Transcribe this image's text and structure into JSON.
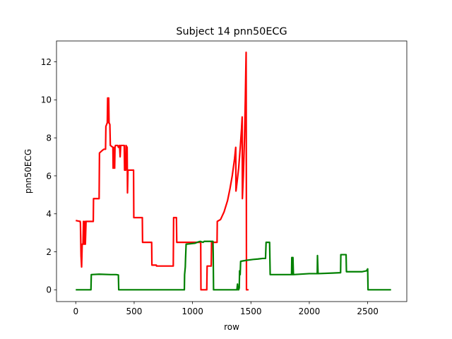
{
  "chart_data": {
    "type": "line",
    "title": "Subject 14 pnn50ECG",
    "xlabel": "row",
    "ylabel": "pnn50ECG",
    "xlim": [
      -165,
      2835
    ],
    "ylim": [
      -0.62,
      13.1
    ],
    "xticks": [
      0,
      500,
      1000,
      1500,
      2000,
      2500
    ],
    "yticks": [
      0,
      2,
      4,
      6,
      8,
      10,
      12
    ],
    "grid": false,
    "series": [
      {
        "color": "#ff0000",
        "points": [
          [
            0,
            3.65
          ],
          [
            20,
            3.62
          ],
          [
            38,
            3.6
          ],
          [
            40,
            3.5
          ],
          [
            45,
            1.8
          ],
          [
            50,
            1.2
          ],
          [
            55,
            2.4
          ],
          [
            62,
            2.4
          ],
          [
            66,
            3.6
          ],
          [
            72,
            2.4
          ],
          [
            78,
            3.6
          ],
          [
            82,
            2.4
          ],
          [
            88,
            3.6
          ],
          [
            150,
            3.6
          ],
          [
            152,
            4.8
          ],
          [
            200,
            4.8
          ],
          [
            203,
            7.2
          ],
          [
            220,
            7.3
          ],
          [
            240,
            7.4
          ],
          [
            255,
            7.4
          ],
          [
            258,
            8.6
          ],
          [
            270,
            8.8
          ],
          [
            273,
            10.1
          ],
          [
            276,
            8.8
          ],
          [
            282,
            10.1
          ],
          [
            285,
            8.8
          ],
          [
            292,
            8.7
          ],
          [
            296,
            7.6
          ],
          [
            318,
            7.5
          ],
          [
            320,
            6.4
          ],
          [
            323,
            7.5
          ],
          [
            330,
            7.4
          ],
          [
            333,
            6.4
          ],
          [
            336,
            7.5
          ],
          [
            340,
            7.6
          ],
          [
            360,
            7.6
          ],
          [
            365,
            7.5
          ],
          [
            375,
            7.6
          ],
          [
            380,
            7.0
          ],
          [
            385,
            7.6
          ],
          [
            415,
            7.6
          ],
          [
            418,
            6.3
          ],
          [
            428,
            6.3
          ],
          [
            430,
            7.6
          ],
          [
            440,
            7.5
          ],
          [
            443,
            5.1
          ],
          [
            447,
            6.3
          ],
          [
            495,
            6.3
          ],
          [
            497,
            3.8
          ],
          [
            570,
            3.8
          ],
          [
            572,
            2.5
          ],
          [
            650,
            2.5
          ],
          [
            652,
            1.3
          ],
          [
            690,
            1.3
          ],
          [
            692,
            1.25
          ],
          [
            835,
            1.25
          ],
          [
            838,
            3.8
          ],
          [
            862,
            3.8
          ],
          [
            865,
            2.5
          ],
          [
            1070,
            2.5
          ],
          [
            1072,
            0.0
          ],
          [
            1122,
            0.0
          ],
          [
            1125,
            1.25
          ],
          [
            1160,
            1.25
          ],
          [
            1163,
            2.5
          ],
          [
            1210,
            2.5
          ],
          [
            1212,
            3.6
          ],
          [
            1240,
            3.7
          ],
          [
            1270,
            4.1
          ],
          [
            1300,
            4.7
          ],
          [
            1320,
            5.3
          ],
          [
            1340,
            6.0
          ],
          [
            1360,
            6.9
          ],
          [
            1370,
            7.5
          ],
          [
            1372,
            5.2
          ],
          [
            1380,
            5.6
          ],
          [
            1395,
            6.4
          ],
          [
            1410,
            7.6
          ],
          [
            1420,
            8.5
          ],
          [
            1425,
            9.1
          ],
          [
            1427,
            4.8
          ],
          [
            1435,
            6.0
          ],
          [
            1445,
            8.0
          ],
          [
            1452,
            10.0
          ],
          [
            1456,
            11.5
          ],
          [
            1459,
            12.5
          ],
          [
            1461,
            5.0
          ],
          [
            1462,
            0.0
          ],
          [
            1480,
            0.0
          ]
        ]
      },
      {
        "color": "#008000",
        "points": [
          [
            0,
            0.0
          ],
          [
            130,
            0.0
          ],
          [
            133,
            0.8
          ],
          [
            200,
            0.82
          ],
          [
            300,
            0.8
          ],
          [
            345,
            0.8
          ],
          [
            365,
            0.78
          ],
          [
            368,
            0.0
          ],
          [
            930,
            0.0
          ],
          [
            932,
            0.8
          ],
          [
            938,
            1.2
          ],
          [
            940,
            1.6
          ],
          [
            945,
            2.4
          ],
          [
            1020,
            2.45
          ],
          [
            1040,
            2.5
          ],
          [
            1065,
            2.55
          ],
          [
            1090,
            2.5
          ],
          [
            1100,
            2.55
          ],
          [
            1140,
            2.55
          ],
          [
            1160,
            2.55
          ],
          [
            1175,
            2.55
          ],
          [
            1177,
            1.9
          ],
          [
            1180,
            0.0
          ],
          [
            1380,
            0.0
          ],
          [
            1385,
            0.3
          ],
          [
            1390,
            0.0
          ],
          [
            1395,
            0.0
          ],
          [
            1400,
            0.1
          ],
          [
            1403,
            1.0
          ],
          [
            1408,
            0.8
          ],
          [
            1412,
            1.5
          ],
          [
            1460,
            1.55
          ],
          [
            1520,
            1.6
          ],
          [
            1560,
            1.62
          ],
          [
            1600,
            1.65
          ],
          [
            1625,
            1.65
          ],
          [
            1630,
            2.5
          ],
          [
            1660,
            2.5
          ],
          [
            1665,
            0.8
          ],
          [
            1700,
            0.8
          ],
          [
            1848,
            0.8
          ],
          [
            1850,
            1.7
          ],
          [
            1852,
            0.8
          ],
          [
            1858,
            0.8
          ],
          [
            1860,
            1.7
          ],
          [
            1864,
            0.8
          ],
          [
            2000,
            0.85
          ],
          [
            2068,
            0.85
          ],
          [
            2070,
            1.8
          ],
          [
            2075,
            0.85
          ],
          [
            2200,
            0.88
          ],
          [
            2268,
            0.9
          ],
          [
            2270,
            1.85
          ],
          [
            2315,
            1.85
          ],
          [
            2318,
            0.95
          ],
          [
            2450,
            0.95
          ],
          [
            2490,
            1.0
          ],
          [
            2500,
            1.1
          ],
          [
            2503,
            0.0
          ],
          [
            2700,
            0.0
          ]
        ]
      }
    ]
  }
}
